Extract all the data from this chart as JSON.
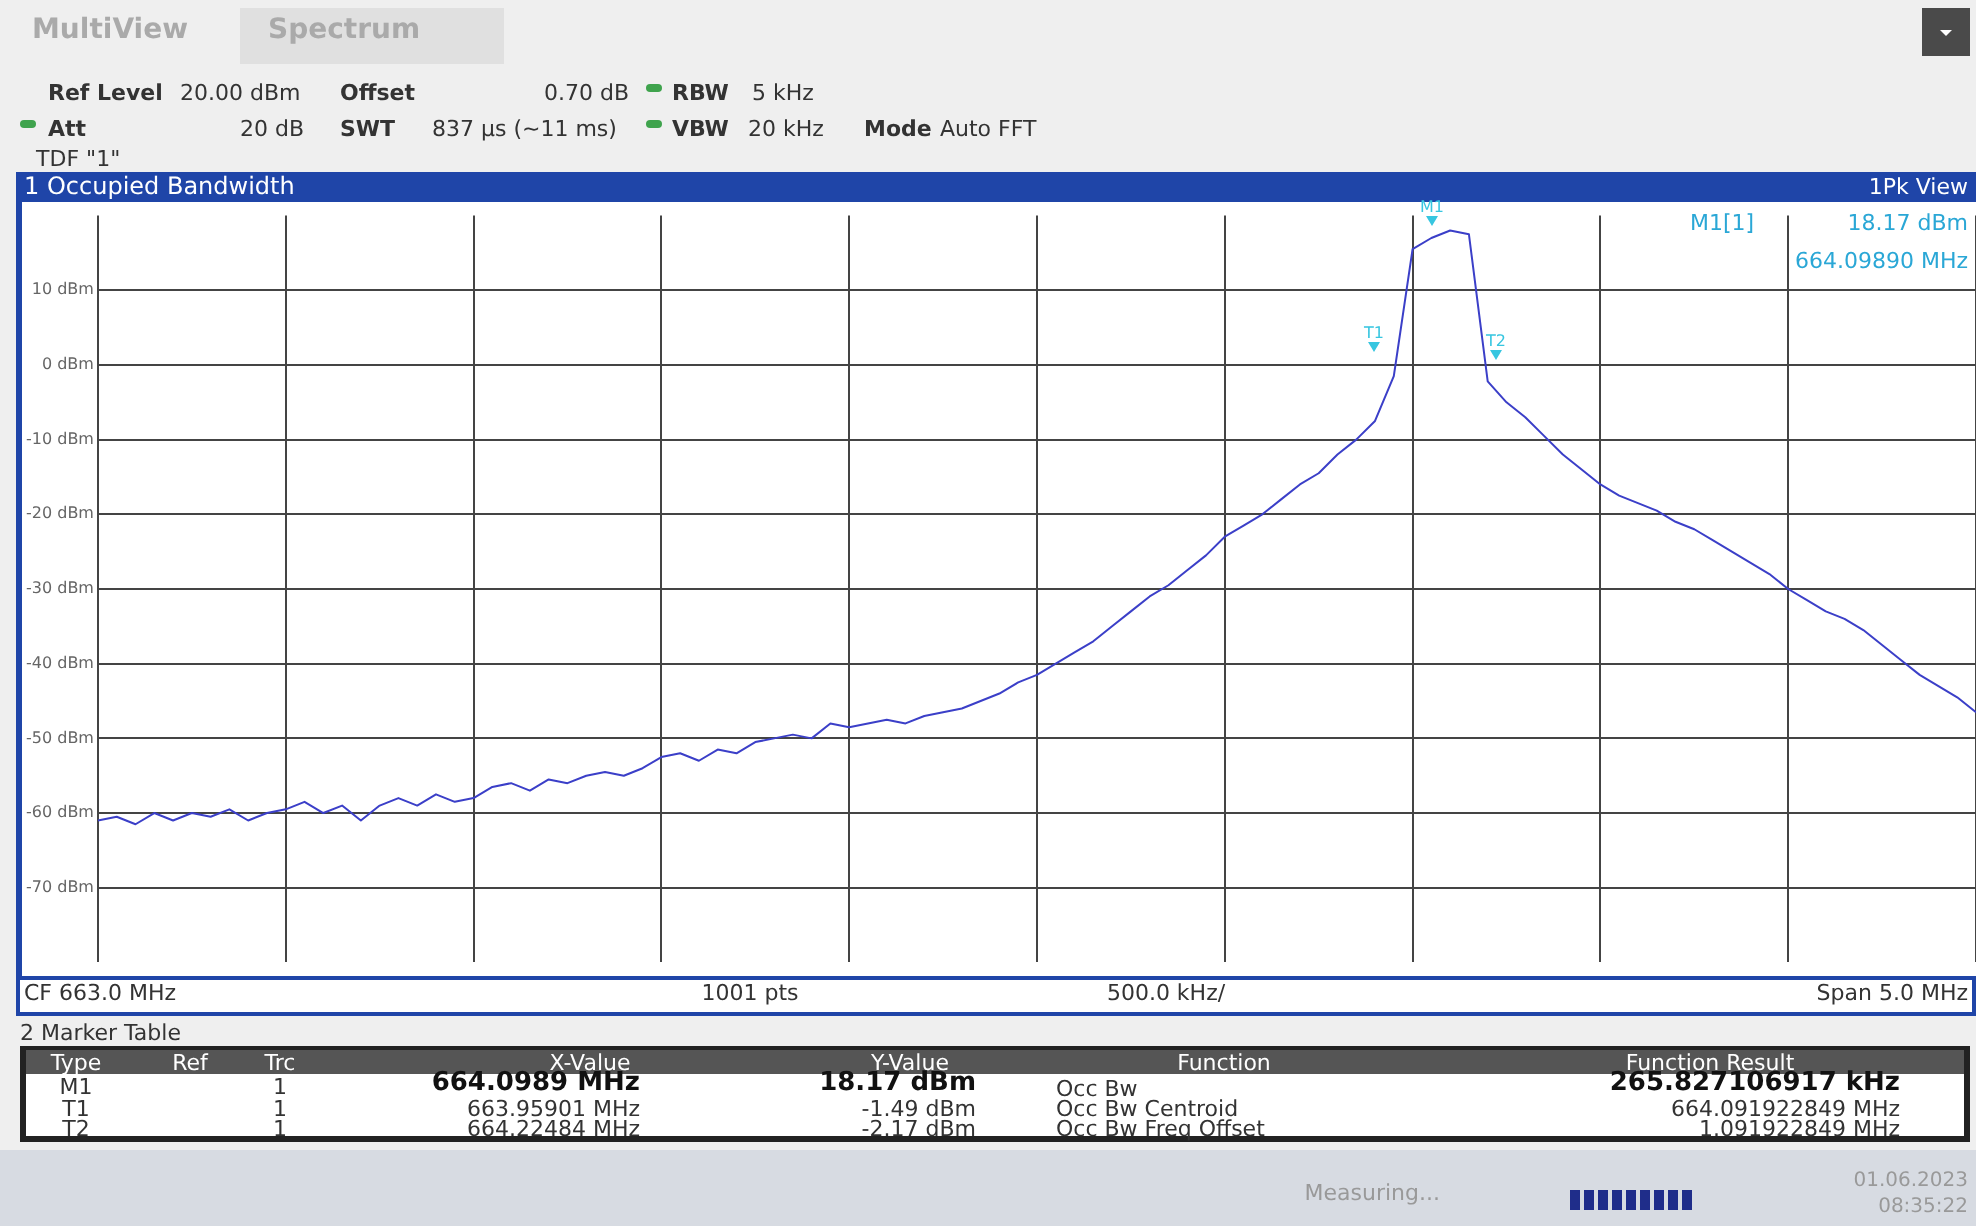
{
  "chart_data": {
    "type": "line",
    "title": "1 Occupied Bandwidth",
    "categories": [
      null,
      null,
      null,
      null,
      null,
      null,
      null,
      null,
      null,
      null,
      null,
      null,
      null,
      null,
      null,
      null,
      null,
      null,
      null,
      null,
      null,
      null,
      null,
      null,
      null,
      null,
      null,
      null,
      null,
      null,
      null,
      null,
      null,
      null,
      null,
      null,
      null,
      null,
      null,
      null,
      null,
      null,
      null,
      null,
      null,
      null,
      null,
      null,
      null,
      null,
      null,
      null,
      null,
      null,
      null,
      null,
      null,
      null,
      null,
      null,
      null,
      null,
      null,
      null,
      null,
      null,
      null,
      null,
      null,
      null,
      null,
      null,
      null,
      null,
      null,
      null,
      null,
      null,
      null,
      null,
      null,
      null,
      null,
      null,
      null,
      null,
      null,
      null,
      null,
      null,
      null,
      null,
      null,
      null,
      null,
      null,
      null,
      null,
      null,
      null,
      null
    ],
    "series": [
      {
        "color": "#3b3fc8",
        "values": [
          -61,
          -60.5,
          -61.5,
          -60,
          -61,
          -60,
          -60.5,
          -59.5,
          -61,
          -60,
          -59.5,
          -58.5,
          -60,
          -59,
          -61,
          -59,
          -58,
          -59,
          -57.5,
          -58.5,
          -58,
          -56.5,
          -56,
          -57,
          -55.5,
          -56,
          -55,
          -54.5,
          -55,
          -54,
          -52.5,
          -52,
          -53,
          -51.5,
          -52,
          -50.5,
          -50,
          -49.5,
          -50,
          -48,
          -48.5,
          -48,
          -47.5,
          -48,
          -47,
          -46.5,
          -46,
          -45,
          -44,
          -42.5,
          -41.5,
          -40,
          -38.5,
          -37,
          -35,
          -33,
          -31,
          -29.5,
          -27.5,
          -25.5,
          -23,
          -21.5,
          -20,
          -18,
          -16,
          -14.5,
          -12,
          -10,
          -7.5,
          -1.5,
          15.5,
          17,
          18,
          17.5,
          -2.2,
          -5,
          -7,
          -9.5,
          -12,
          -14,
          -16,
          -17.5,
          -18.5,
          -19.5,
          -21,
          -22,
          -23.5,
          -25,
          -26.5,
          -28,
          -30,
          -31.5,
          -33,
          -34,
          -35.5,
          -37.5,
          -39.5,
          -41.5,
          -43,
          -44.5,
          -46.5
        ]
      }
    ],
    "ylim": [
      -80,
      20
    ],
    "yticks": [
      {
        "value": -70,
        "label": "-70 dBm"
      },
      {
        "value": -60,
        "label": "-60 dBm"
      },
      {
        "value": -50,
        "label": "-50 dBm"
      },
      {
        "value": -40,
        "label": "-40 dBm"
      },
      {
        "value": -30,
        "label": "-30 dBm"
      },
      {
        "value": -20,
        "label": "-20 dBm"
      },
      {
        "value": -10,
        "label": "-10 dBm"
      },
      {
        "value": 0,
        "label": "0 dBm"
      },
      {
        "value": 10,
        "label": "10 dBm"
      }
    ],
    "grid": true,
    "legend": false,
    "marker": "none",
    "annotations": [
      "MultiView",
      "Spectrum",
      "Ref Level",
      "20.00 dBm",
      "Offset",
      "0.70 dB",
      "RBW",
      "5 kHz",
      "Att",
      "20 dB",
      "SWT",
      "837 µs (~11 ms)",
      "VBW",
      "20 kHz",
      "Mode",
      "Auto FFT",
      "TDF \"1\"",
      "1Pk View",
      "M1[1]",
      "18.17 dBm",
      "664.09890 MHz",
      "CF 663.0 MHz",
      "1001 pts",
      "500.0 kHz/",
      "Span 5.0 MHz",
      "2 Marker Table",
      "Type",
      "Ref",
      "Trc",
      "X-Value",
      "Y-Value",
      "Function",
      "Function Result",
      "M1",
      "1",
      "664.0989 MHz",
      "18.17 dBm",
      "Occ Bw",
      "265.827106917 kHz",
      "T1",
      "1",
      "663.95901 MHz",
      "-1.49 dBm",
      "Occ Bw Centroid",
      "664.091922849 MHz",
      "T2",
      "1",
      "664.22484 MHz",
      "-2.17 dBm",
      "Occ Bw Freq Offset",
      "1.091922849 MHz",
      "Measuring...",
      "01.06.2023",
      "08:35:22",
      "M1",
      "T1",
      "T2"
    ]
  }
}
